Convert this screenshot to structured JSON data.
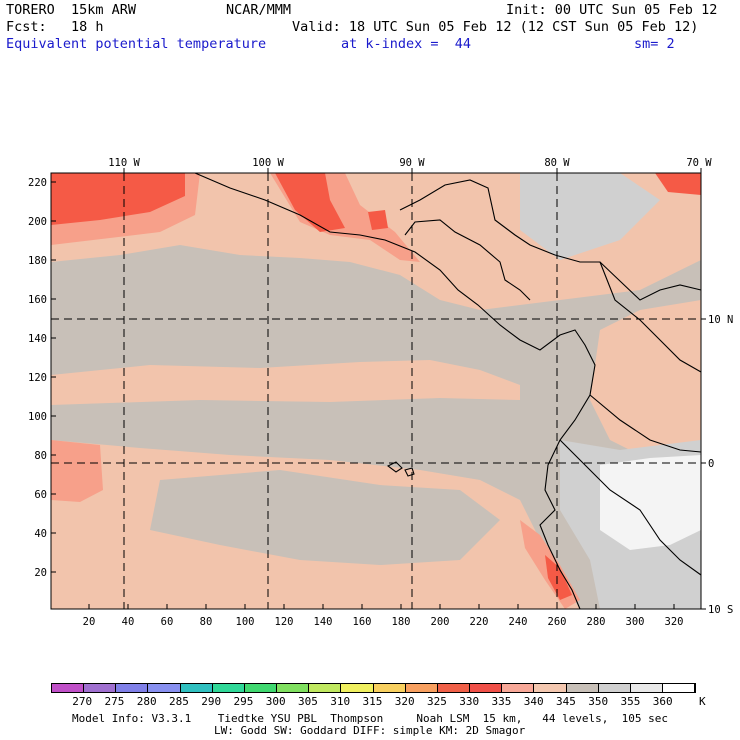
{
  "header": {
    "model": "TORERO  15km ARW",
    "org": "NCAR/MMM",
    "init": "Init: 00 UTC Sun 05 Feb 12",
    "fcst": "Fcst:   18 h",
    "valid": "Valid: 18 UTC Sun 05 Feb 12 (12 CST Sun 05 Feb 12)",
    "field": "Equivalent potential temperature",
    "level": "at k-index =  44",
    "smooth": "sm= 2"
  },
  "map": {
    "top_lon_labels": [
      "110 W",
      "100 W",
      "90 W",
      "80 W",
      "70 W"
    ],
    "right_lat_labels": [
      "10 N",
      "0",
      "10 S"
    ],
    "left_y_ticks": [
      "220",
      "200",
      "180",
      "160",
      "140",
      "120",
      "100",
      "80",
      "60",
      "40",
      "20"
    ],
    "bottom_x_ticks": [
      "20",
      "40",
      "60",
      "80",
      "100",
      "120",
      "140",
      "160",
      "180",
      "200",
      "220",
      "240",
      "260",
      "280",
      "300",
      "320"
    ],
    "colors": {
      "ocean_base": "#c8c0b8",
      "warm_light": "#f2c4ac",
      "warm_mid": "#f7a08a",
      "hot": "#f55a46",
      "cool_grey": "#d0d0d0",
      "coldest": "#f4f4f4"
    }
  },
  "colorbar": {
    "unit": "K",
    "labels": [
      "270",
      "275",
      "280",
      "285",
      "290",
      "295",
      "300",
      "305",
      "310",
      "315",
      "320",
      "325",
      "330",
      "335",
      "340",
      "345",
      "350",
      "355",
      "360"
    ],
    "colors": [
      "#c050c8",
      "#a070d0",
      "#8080e8",
      "#8890f0",
      "#30c0c0",
      "#30d898",
      "#40d870",
      "#80e060",
      "#c0e860",
      "#f0f060",
      "#f8d060",
      "#f8a060",
      "#f06048",
      "#f05048",
      "#f8a898",
      "#f4c8b0",
      "#c8c0b8",
      "#d0d0d0",
      "#e8e8e8",
      "#ffffff"
    ]
  },
  "footer": {
    "line1": "Model Info: V3.3.1    Tiedtke YSU PBL  Thompson     Noah LSM  15 km,   44 levels,  105 sec",
    "line2": "LW: Godd SW: Goddard DIFF: simple KM: 2D Smagor"
  }
}
